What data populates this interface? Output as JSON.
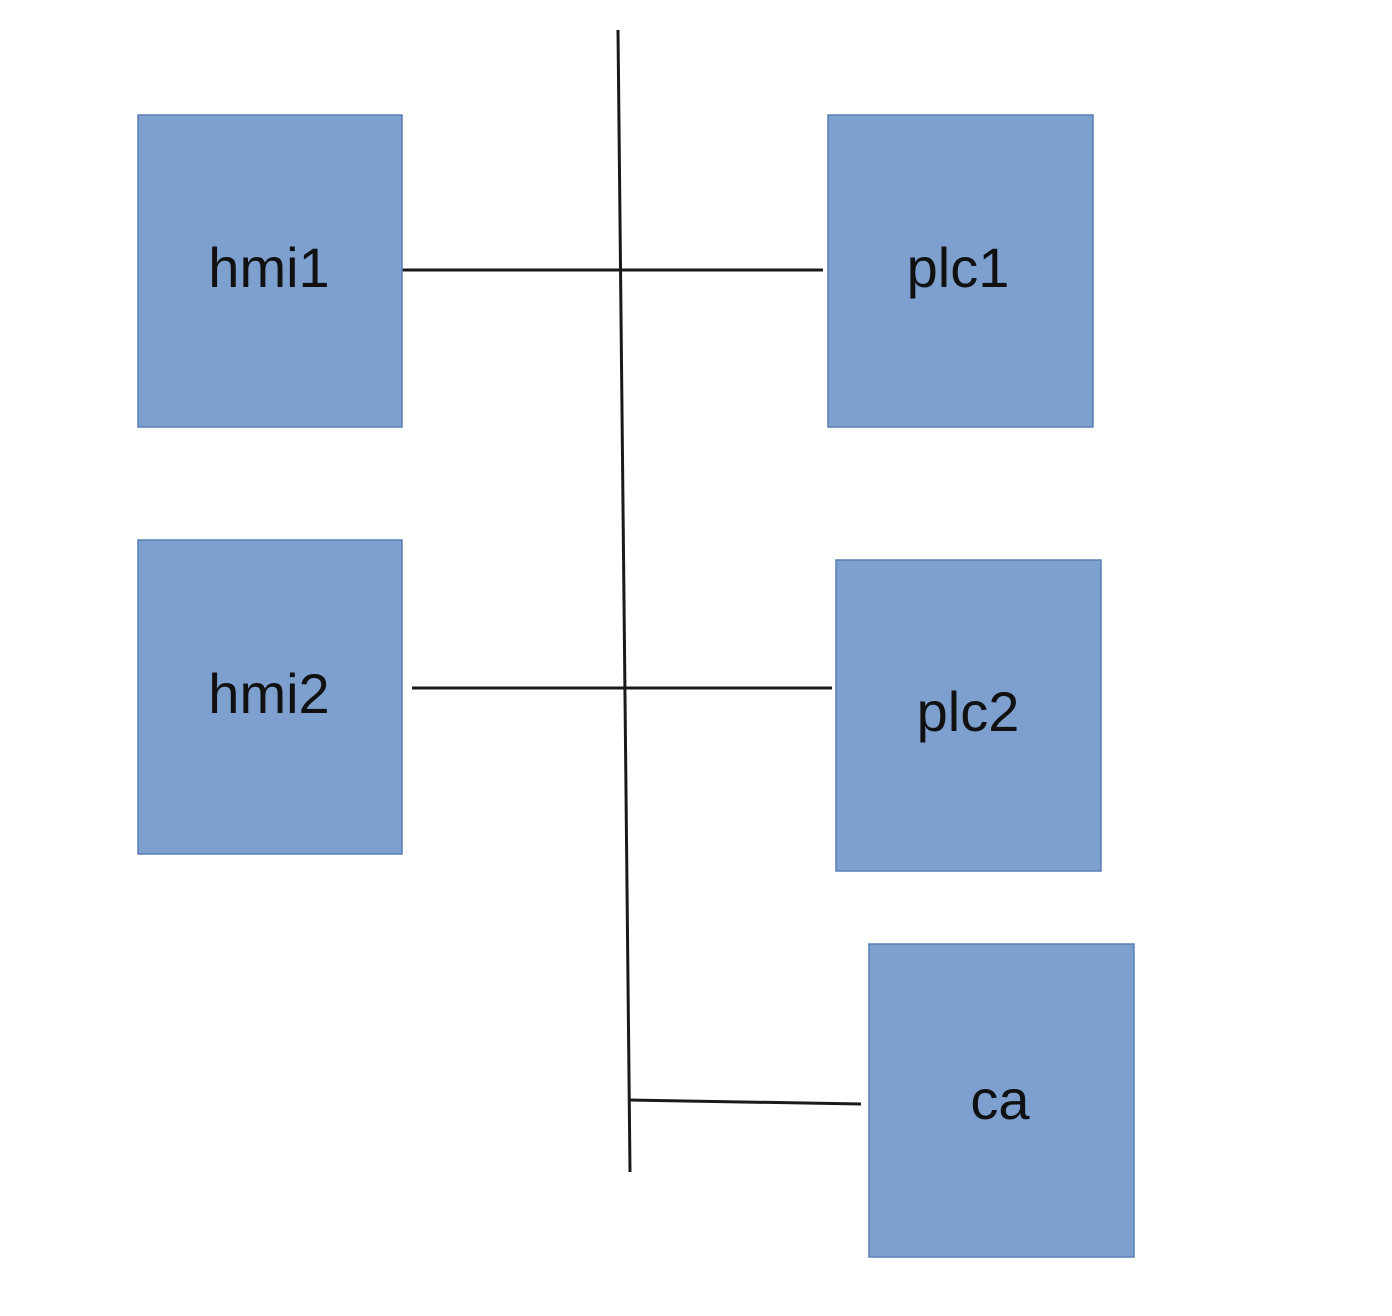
{
  "diagram": {
    "colors": {
      "node_fill": "#7da0cf",
      "node_stroke": "#5a7fb5",
      "line": "#1a1a1a",
      "background": "#ffffff"
    },
    "nodes": [
      {
        "id": "hmi1",
        "label": "hmi1"
      },
      {
        "id": "hmi2",
        "label": "hmi2"
      },
      {
        "id": "plc1",
        "label": "plc1"
      },
      {
        "id": "plc2",
        "label": "plc2"
      },
      {
        "id": "ca",
        "label": "ca"
      }
    ],
    "edges": [
      {
        "from": "hmi1",
        "to": "plc1",
        "via": "network-bus"
      },
      {
        "from": "hmi2",
        "to": "plc2",
        "via": "network-bus"
      },
      {
        "from": "network-bus",
        "to": "ca"
      }
    ]
  }
}
